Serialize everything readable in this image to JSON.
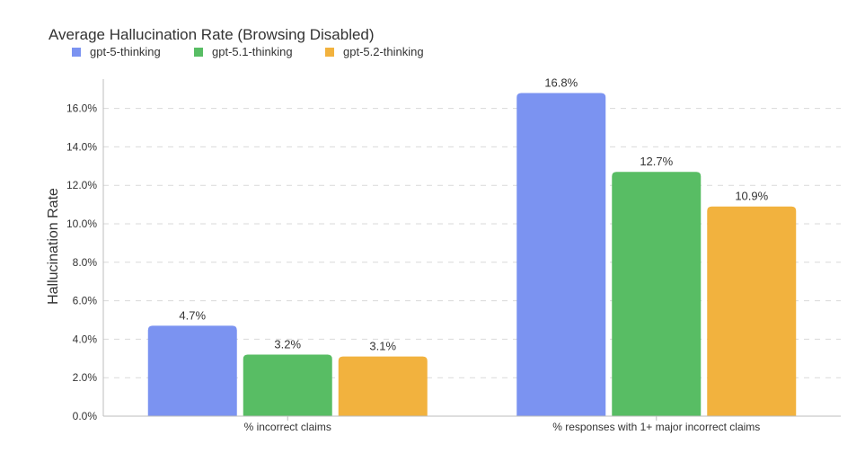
{
  "chart_data": {
    "type": "bar",
    "title": "Average Hallucination Rate (Browsing Disabled)",
    "xlabel": "",
    "ylabel": "Hallucination Rate",
    "ylim": [
      0,
      17.6
    ],
    "yticks": [
      0,
      2,
      4,
      6,
      8,
      10,
      12,
      14,
      16
    ],
    "ytick_labels": [
      "0.0%",
      "2.0%",
      "4.0%",
      "6.0%",
      "8.0%",
      "10.0%",
      "12.0%",
      "14.0%",
      "16.0%"
    ],
    "grid": true,
    "legend_position": "top-left",
    "categories": [
      "% incorrect claims",
      "% responses with 1+ major incorrect claims"
    ],
    "series": [
      {
        "name": "gpt-5-thinking",
        "color": "#7B93F1",
        "values": [
          4.7,
          16.8
        ],
        "labels": [
          "4.7%",
          "16.8%"
        ]
      },
      {
        "name": "gpt-5.1-thinking",
        "color": "#58BD64",
        "values": [
          3.2,
          12.7
        ],
        "labels": [
          "3.2%",
          "12.7%"
        ]
      },
      {
        "name": "gpt-5.2-thinking",
        "color": "#F2B23E",
        "values": [
          3.1,
          10.9
        ],
        "labels": [
          "3.1%",
          "10.9%"
        ]
      }
    ]
  }
}
